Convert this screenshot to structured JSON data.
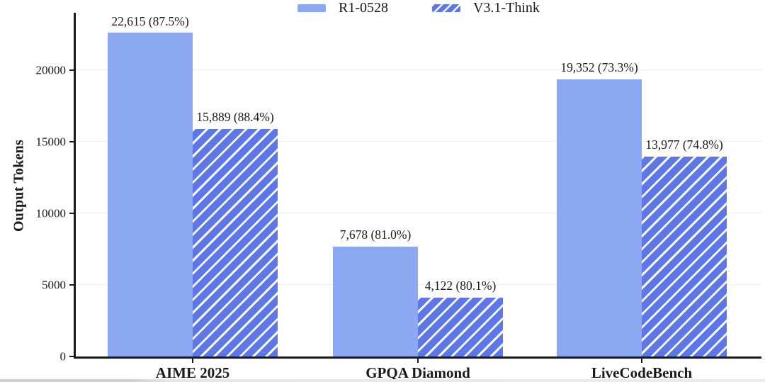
{
  "colors": {
    "bar_solid": "#8DA8F2",
    "bar_hatch_base": "#5D76E8",
    "hatch_stripe": "#F8FAFF",
    "axis": "#1a1a1a",
    "grid": "#efefef",
    "text": "#1a1a1a"
  },
  "chart_data": {
    "type": "bar",
    "title": "",
    "ylabel": "Output Tokens",
    "xlabel": "",
    "categories": [
      "AIME 2025",
      "GPQA Diamond",
      "LiveCodeBench"
    ],
    "series": [
      {
        "name": "R1-0528",
        "style": "solid",
        "values": [
          22615,
          7678,
          19352
        ],
        "accuracy_pct": [
          87.5,
          81.0,
          73.3
        ],
        "labels": [
          "22,615 (87.5%)",
          "7,678 (81.0%)",
          "19,352 (73.3%)"
        ]
      },
      {
        "name": "V3.1-Think",
        "style": "hatched",
        "values": [
          15889,
          4122,
          13977
        ],
        "accuracy_pct": [
          88.4,
          80.1,
          74.8
        ],
        "labels": [
          "15,889 (88.4%)",
          "4,122 (80.1%)",
          "13,977 (74.8%)"
        ]
      }
    ],
    "yticks": [
      "0",
      "5000",
      "10000",
      "15000",
      "20000"
    ],
    "ytick_values": [
      0,
      5000,
      10000,
      15000,
      20000
    ],
    "ylim": [
      0,
      24000
    ],
    "grid": "horizontal-light",
    "legend_position": "top-center"
  }
}
